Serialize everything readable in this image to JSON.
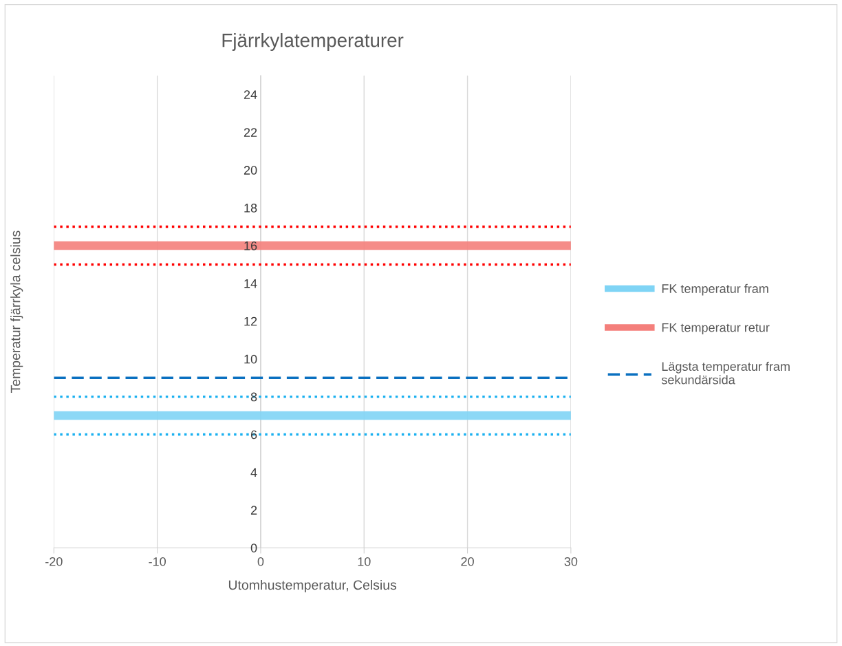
{
  "chart_data": {
    "type": "line",
    "title": "Fjärrkylatemperaturer",
    "xlabel": "Utomhustemperatur, Celsius",
    "ylabel": "Temperatur fjärrkyla celsius",
    "x": [
      -20,
      30
    ],
    "series": [
      {
        "name": "FK temperatur fram",
        "color": "#7fd4f5",
        "values": [
          7,
          7
        ],
        "line_style": "solid"
      },
      {
        "name": "FK temperatur retur",
        "color": "#f47f7b",
        "values": [
          16,
          16
        ],
        "line_style": "solid"
      },
      {
        "name": "Lägsta temperatur fram sekundärsida",
        "color": "#0a70c0",
        "values": [
          9,
          9
        ],
        "line_style": "dashed"
      },
      {
        "color": "#ff0000",
        "values": [
          17,
          17
        ],
        "line_style": "dotted"
      },
      {
        "color": "#ff0000",
        "values": [
          15,
          15
        ],
        "line_style": "dotted"
      },
      {
        "color": "#1ab0f0",
        "values": [
          8,
          8
        ],
        "line_style": "dotted"
      },
      {
        "color": "#1ab0f0",
        "values": [
          6,
          6
        ],
        "line_style": "dotted"
      }
    ],
    "xlim": [
      -20,
      30
    ],
    "xticks": [
      -20,
      -10,
      0,
      10,
      20,
      30
    ],
    "ylim": [
      0,
      25
    ],
    "yticks": [
      0,
      2,
      4,
      6,
      8,
      10,
      12,
      14,
      16,
      18,
      20,
      22,
      24
    ],
    "grid": "x",
    "legend": "right",
    "marker": "none"
  }
}
